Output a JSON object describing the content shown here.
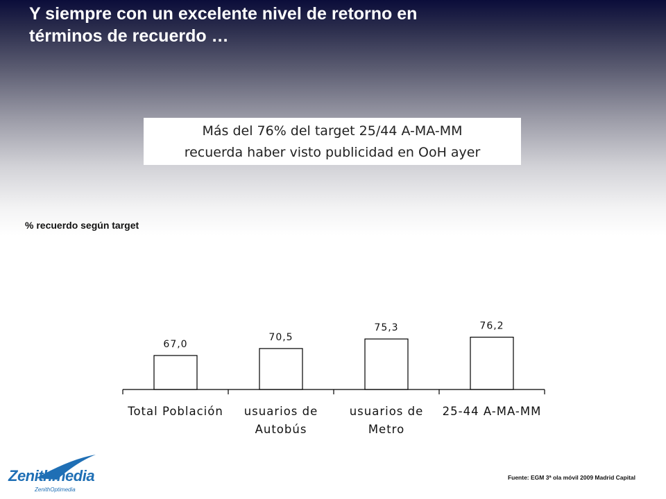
{
  "slide": {
    "title_line1": "Y siempre con un excelente nivel de retorno en",
    "title_line2": "términos de recuerdo …",
    "callout_line1": "Más del 76% del target 25/44 A-MA-MM",
    "callout_line2": "recuerda haber visto publicidad en OoH ayer",
    "source": "Fuente: EGM 3ª ola móvil 2009 Madrid Capital"
  },
  "logo": {
    "name": "Zenithmedia",
    "sub": "ZenithOptimedia",
    "icon": "swoosh-icon",
    "color": "#1f6fb5"
  },
  "chart_data": {
    "type": "bar",
    "title": "% recuerdo según target",
    "categories": [
      [
        "Total Población"
      ],
      [
        "usuarios de",
        "Autobús"
      ],
      [
        "usuarios de",
        "Metro"
      ],
      [
        "25-44 A-MA-MM"
      ]
    ],
    "values": [
      67.0,
      70.5,
      75.3,
      76.2
    ],
    "value_labels": [
      "67,0",
      "70,5",
      "75,3",
      "76,2"
    ],
    "ylim": [
      0,
      100
    ],
    "grid": false,
    "legend": "none",
    "bar_color": "#ffffff",
    "edge_color": "#000000"
  }
}
